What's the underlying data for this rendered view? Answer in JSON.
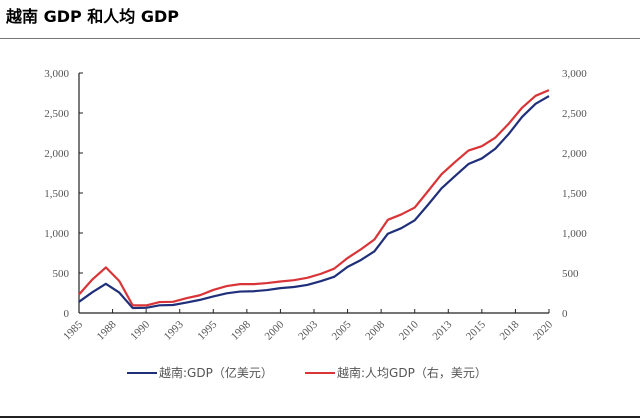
{
  "title": "越南 GDP 和人均 GDP",
  "chart_data": {
    "type": "line",
    "title": "越南 GDP 和人均 GDP",
    "x": [
      1985,
      1986,
      1987,
      1988,
      1989,
      1990,
      1991,
      1992,
      1993,
      1994,
      1995,
      1996,
      1997,
      1998,
      1999,
      2000,
      2001,
      2002,
      2003,
      2004,
      2005,
      2006,
      2007,
      2008,
      2009,
      2010,
      2011,
      2012,
      2013,
      2014,
      2015,
      2016,
      2017,
      2018,
      2019,
      2020
    ],
    "x_tick_labels": [
      "1985",
      "1988",
      "1990",
      "1993",
      "1995",
      "1998",
      "2000",
      "2003",
      "2005",
      "2008",
      "2010",
      "2013",
      "2015",
      "2018",
      "2020"
    ],
    "y_left": {
      "range": [
        0,
        3000
      ],
      "tick_labels": [
        "0",
        "500",
        "1,000",
        "1,500",
        "2,000",
        "2,500",
        "3,000"
      ]
    },
    "y_right": {
      "range": [
        0,
        3000
      ],
      "tick_labels": [
        "0",
        "500",
        "1,000",
        "1,500",
        "2,000",
        "2,500",
        "3,000"
      ]
    },
    "grid": false,
    "legend_placement": "bottom",
    "series": [
      {
        "name": "越南:GDP（亿美元）",
        "axis": "left",
        "color": "#1f2f7a",
        "values": [
          140,
          260,
          365,
          255,
          62,
          65,
          96,
          100,
          131,
          164,
          207,
          246,
          268,
          272,
          287,
          311,
          325,
          351,
          398,
          452,
          577,
          663,
          771,
          991,
          1060,
          1159,
          1355,
          1558,
          1712,
          1862,
          1932,
          2053,
          2238,
          2452,
          2615,
          2712
        ]
      },
      {
        "name": "越南:人均GDP（右，美元）",
        "axis": "right",
        "color": "#d93438",
        "values": [
          231,
          420,
          570,
          400,
          95,
          95,
          137,
          140,
          185,
          222,
          288,
          337,
          361,
          361,
          374,
          394,
          410,
          440,
          489,
          554,
          687,
          797,
          919,
          1165,
          1232,
          1318,
          1525,
          1735,
          1887,
          2030,
          2085,
          2192,
          2366,
          2567,
          2715,
          2786
        ]
      }
    ]
  }
}
